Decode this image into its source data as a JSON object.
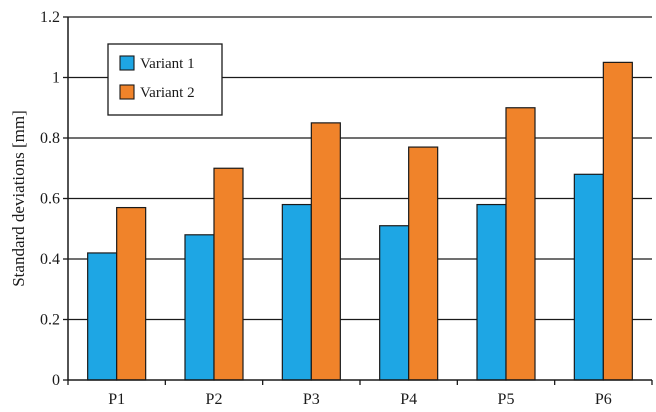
{
  "chart_data": {
    "type": "bar",
    "title": "",
    "xlabel": "",
    "ylabel": "Standard deviations [mm]",
    "categories": [
      "P1",
      "P2",
      "P3",
      "P4",
      "P5",
      "P6"
    ],
    "series": [
      {
        "name": "Variant 1",
        "color": "#1ea6e4",
        "values": [
          0.42,
          0.48,
          0.58,
          0.51,
          0.58,
          0.68
        ]
      },
      {
        "name": "Variant 2",
        "color": "#f0832a",
        "values": [
          0.57,
          0.7,
          0.85,
          0.77,
          0.9,
          1.05
        ]
      }
    ],
    "ylim": [
      0,
      1.2
    ],
    "yticks": [
      0,
      0.2,
      0.4,
      0.6,
      0.8,
      1,
      1.2
    ],
    "ytick_labels": [
      "0",
      "0.2",
      "0.4",
      "0.6",
      "0.8",
      "1",
      "1.2"
    ],
    "grid": "horizontal",
    "legend_position": "top-left"
  }
}
